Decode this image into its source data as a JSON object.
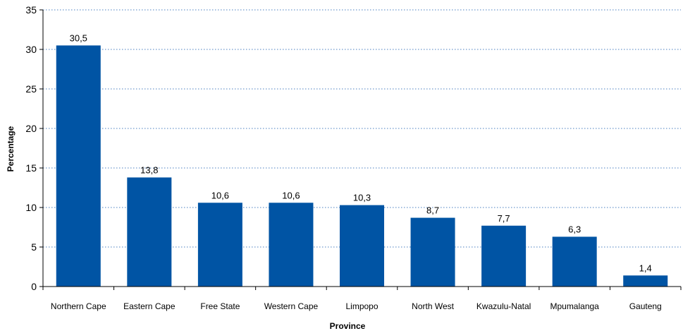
{
  "chart_data": {
    "type": "bar",
    "title": "",
    "xlabel": "Province",
    "ylabel": "Percentage",
    "categories": [
      "Northern Cape",
      "Eastern Cape",
      "Free State",
      "Western Cape",
      "Limpopo",
      "North West",
      "Kwazulu-Natal",
      "Mpumalanga",
      "Gauteng"
    ],
    "values": [
      30.5,
      13.8,
      10.6,
      10.6,
      10.3,
      8.7,
      7.7,
      6.3,
      1.4
    ],
    "value_labels": [
      "30,5",
      "13,8",
      "10,6",
      "10,6",
      "10,3",
      "8,7",
      "7,7",
      "6,3",
      "1,4"
    ],
    "ylim": [
      0,
      35
    ],
    "yticks": [
      0,
      5,
      10,
      15,
      20,
      25,
      30,
      35
    ],
    "grid": true,
    "legend": "none",
    "bar_color": "#0054A4",
    "grid_color": "#4A7FC0"
  }
}
